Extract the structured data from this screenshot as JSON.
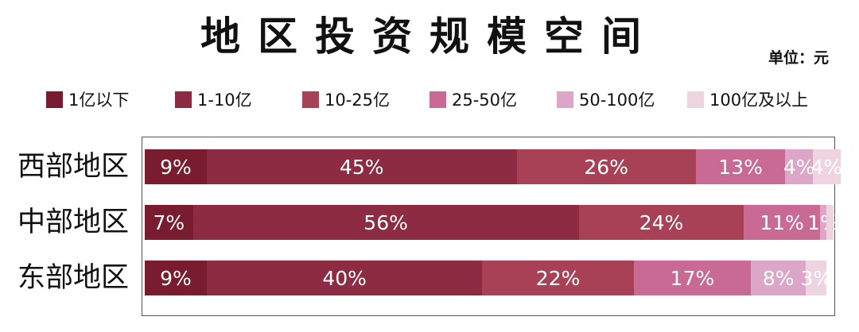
{
  "header": {
    "title": "地区投资规模空间",
    "unit": "单位：元"
  },
  "legend": [
    {
      "label": "1亿以下",
      "color": "#7a1c30"
    },
    {
      "label": "1-10亿",
      "color": "#8c2b42"
    },
    {
      "label": "10-25亿",
      "color": "#a84156"
    },
    {
      "label": "25-50亿",
      "color": "#c96a94"
    },
    {
      "label": "50-100亿",
      "color": "#dca6c8"
    },
    {
      "label": "100亿及以上",
      "color": "#eed4e0"
    }
  ],
  "chart_data": {
    "type": "bar",
    "orientation": "horizontal",
    "stacked": true,
    "percent": true,
    "title": "地区投资规模空间",
    "categories": [
      "西部地区",
      "中部地区",
      "东部地区"
    ],
    "series": [
      {
        "name": "1亿以下",
        "values": [
          9,
          7,
          9
        ],
        "labels": [
          "9%",
          "7%",
          "9%"
        ]
      },
      {
        "name": "1-10亿",
        "values": [
          45,
          56,
          40
        ],
        "labels": [
          "45%",
          "56%",
          "40%"
        ]
      },
      {
        "name": "10-25亿",
        "values": [
          26,
          24,
          22
        ],
        "labels": [
          "26%",
          "24%",
          "22%"
        ]
      },
      {
        "name": "25-50亿",
        "values": [
          13,
          11,
          17
        ],
        "labels": [
          "13%",
          "11%",
          "17%"
        ]
      },
      {
        "name": "50-100亿",
        "values": [
          4,
          1,
          8
        ],
        "labels": [
          "4%",
          "1%",
          "8%"
        ]
      },
      {
        "name": "100亿及以上",
        "values": [
          4,
          1,
          3
        ],
        "labels": [
          "4%",
          "",
          "3%"
        ]
      }
    ],
    "xlim": [
      0,
      100
    ],
    "grid": false,
    "legend_position": "top"
  }
}
